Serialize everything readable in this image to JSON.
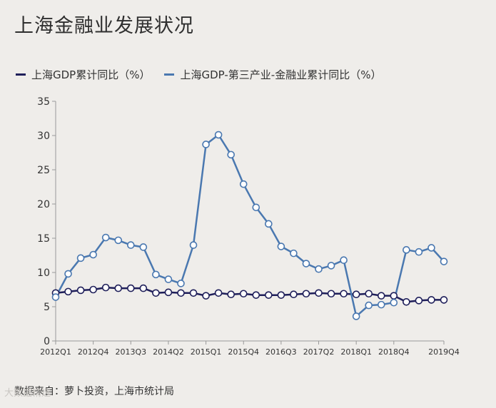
{
  "title": "上海金融业发展状况",
  "source": "数据来自：萝卜投资，上海市统计局",
  "watermark": "大数据精选",
  "colors": {
    "series1": "#1f1f5a",
    "series2": "#4a78b0",
    "axis": "#999999",
    "marker_fill": "#ffffff"
  },
  "chart_data": {
    "type": "line",
    "title": "上海金融业发展状况",
    "xlabel": "",
    "ylabel": "",
    "ylim": [
      0,
      35
    ],
    "yticks": [
      0,
      5,
      10,
      15,
      20,
      25,
      30,
      35
    ],
    "grid": false,
    "legend_position": "top",
    "x": [
      "2012Q1",
      "2012Q2",
      "2012Q3",
      "2012Q4",
      "2013Q1",
      "2013Q2",
      "2013Q3",
      "2013Q4",
      "2014Q1",
      "2014Q2",
      "2014Q3",
      "2014Q4",
      "2015Q1",
      "2015Q2",
      "2015Q3",
      "2015Q4",
      "2016Q1",
      "2016Q2",
      "2016Q3",
      "2016Q4",
      "2017Q1",
      "2017Q2",
      "2017Q3",
      "2017Q4",
      "2018Q1",
      "2018Q2",
      "2018Q3",
      "2018Q4",
      "2019Q1",
      "2019Q2",
      "2019Q3",
      "2019Q4"
    ],
    "xtick_labels": [
      "2012Q1",
      "2012Q4",
      "2013Q3",
      "2014Q2",
      "2015Q1",
      "2015Q4",
      "2016Q3",
      "2017Q2",
      "2018Q1",
      "2018Q4",
      "2019Q4"
    ],
    "series": [
      {
        "name": "上海GDP累计同比（%）",
        "values": [
          7.0,
          7.2,
          7.4,
          7.5,
          7.8,
          7.7,
          7.7,
          7.7,
          7.0,
          7.1,
          7.0,
          7.0,
          6.6,
          7.0,
          6.8,
          6.9,
          6.7,
          6.7,
          6.7,
          6.8,
          6.9,
          7.0,
          6.9,
          6.9,
          6.8,
          6.9,
          6.6,
          6.6,
          5.7,
          5.9,
          6.0,
          6.0
        ]
      },
      {
        "name": "上海GDP-第三产业-金融业累计同比（%）",
        "values": [
          6.4,
          9.8,
          12.1,
          12.6,
          15.1,
          14.7,
          14.0,
          13.7,
          9.7,
          9.0,
          8.4,
          14.0,
          28.7,
          30.1,
          27.2,
          22.9,
          19.5,
          17.1,
          13.8,
          12.8,
          11.3,
          10.5,
          11.0,
          11.8,
          3.6,
          5.2,
          5.3,
          5.6,
          13.3,
          13.0,
          13.6,
          11.6
        ]
      }
    ]
  }
}
